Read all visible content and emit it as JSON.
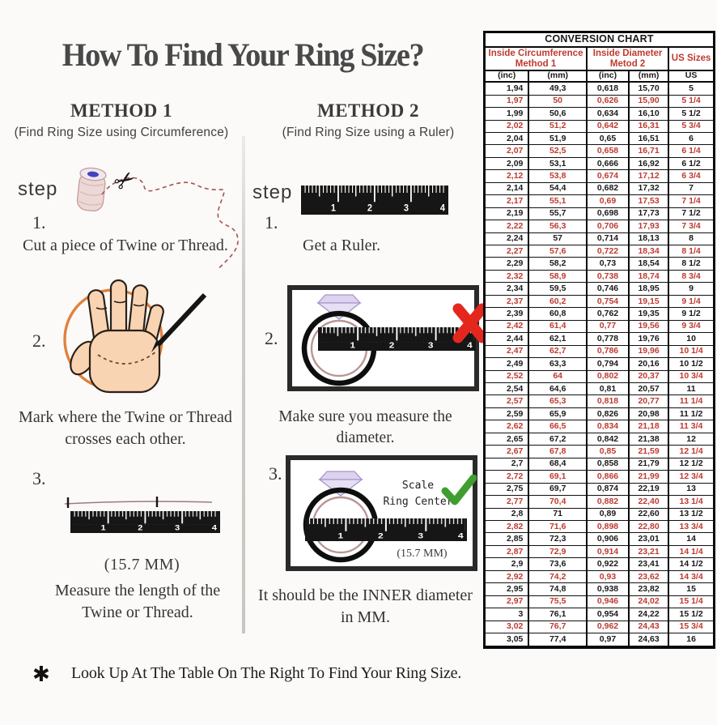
{
  "page": {
    "title": "How To Find Your Ring Size?",
    "footer_symbol": "✱",
    "footer_note": "Look Up At The Table On The Right To Find Your Ring Size."
  },
  "icons": {
    "scissors": "✂"
  },
  "ruler": {
    "numbers": [
      "1",
      "2",
      "3",
      "4"
    ]
  },
  "method1": {
    "heading": "METHOD 1",
    "subheading": "(Find Ring Size using Circumference)",
    "step_label": "step",
    "steps": [
      {
        "number": "1.",
        "caption": "Cut a piece of  Twine or Thread."
      },
      {
        "number": "2.",
        "caption_line1": "Mark where the Twine or Thread",
        "caption_line2": "crosses each other."
      },
      {
        "number": "3.",
        "measurement": "(15.7 MM)",
        "caption_line1": "Measure the length of the",
        "caption_line2": "Twine or Thread."
      }
    ]
  },
  "method2": {
    "heading": "METHOD 2",
    "subheading": "(Find Ring Size using a Ruler)",
    "step_label": "step",
    "steps": [
      {
        "number": "1.",
        "caption": "Get a Ruler."
      },
      {
        "number": "2.",
        "caption": "Make sure you measure the diameter."
      },
      {
        "number": "3.",
        "scale_line1": "Scale",
        "scale_line2": "Ring Center",
        "measurement": "(15.7 MM)",
        "caption_line1": "It should be the INNER diameter",
        "caption_line2": "in MM."
      }
    ]
  },
  "conversion_chart": {
    "title": "CONVERSION CHART",
    "group1_line1": "Inside Circumference",
    "group1_line2": "Method 1",
    "group2_line1": "Inside Diameter",
    "group2_line2": "Metod 2",
    "group3": "US Sizes",
    "units": [
      "(inc)",
      "(mm)",
      "(inc)",
      "(mm)",
      "US"
    ],
    "rows": [
      [
        "1,94",
        "49,3",
        "0,618",
        "15,70",
        "5"
      ],
      [
        "1,97",
        "50",
        "0,626",
        "15,90",
        "5 1/4"
      ],
      [
        "1,99",
        "50,6",
        "0,634",
        "16,10",
        "5 1/2"
      ],
      [
        "2,02",
        "51,2",
        "0,642",
        "16,31",
        "5 3/4"
      ],
      [
        "2,04",
        "51,9",
        "0,65",
        "16,51",
        "6"
      ],
      [
        "2,07",
        "52,5",
        "0,658",
        "16,71",
        "6 1/4"
      ],
      [
        "2,09",
        "53,1",
        "0,666",
        "16,92",
        "6 1/2"
      ],
      [
        "2,12",
        "53,8",
        "0,674",
        "17,12",
        "6 3/4"
      ],
      [
        "2,14",
        "54,4",
        "0,682",
        "17,32",
        "7"
      ],
      [
        "2,17",
        "55,1",
        "0,69",
        "17,53",
        "7 1/4"
      ],
      [
        "2,19",
        "55,7",
        "0,698",
        "17,73",
        "7 1/2"
      ],
      [
        "2,22",
        "56,3",
        "0,706",
        "17,93",
        "7 3/4"
      ],
      [
        "2,24",
        "57",
        "0,714",
        "18,13",
        "8"
      ],
      [
        "2,27",
        "57,6",
        "0,722",
        "18,34",
        "8 1/4"
      ],
      [
        "2,29",
        "58,2",
        "0,73",
        "18,54",
        "8 1/2"
      ],
      [
        "2,32",
        "58,9",
        "0,738",
        "18,74",
        "8 3/4"
      ],
      [
        "2,34",
        "59,5",
        "0,746",
        "18,95",
        "9"
      ],
      [
        "2,37",
        "60,2",
        "0,754",
        "19,15",
        "9 1/4"
      ],
      [
        "2,39",
        "60,8",
        "0,762",
        "19,35",
        "9 1/2"
      ],
      [
        "2,42",
        "61,4",
        "0,77",
        "19,56",
        "9 3/4"
      ],
      [
        "2,44",
        "62,1",
        "0,778",
        "19,76",
        "10"
      ],
      [
        "2,47",
        "62,7",
        "0,786",
        "19,96",
        "10 1/4"
      ],
      [
        "2,49",
        "63,3",
        "0,794",
        "20,16",
        "10 1/2"
      ],
      [
        "2,52",
        "64",
        "0,802",
        "20,37",
        "10 3/4"
      ],
      [
        "2,54",
        "64,6",
        "0,81",
        "20,57",
        "11"
      ],
      [
        "2,57",
        "65,3",
        "0,818",
        "20,77",
        "11 1/4"
      ],
      [
        "2,59",
        "65,9",
        "0,826",
        "20,98",
        "11 1/2"
      ],
      [
        "2,62",
        "66,5",
        "0,834",
        "21,18",
        "11 3/4"
      ],
      [
        "2,65",
        "67,2",
        "0,842",
        "21,38",
        "12"
      ],
      [
        "2,67",
        "67,8",
        "0,85",
        "21,59",
        "12 1/4"
      ],
      [
        "2,7",
        "68,4",
        "0,858",
        "21,79",
        "12 1/2"
      ],
      [
        "2,72",
        "69,1",
        "0,866",
        "21,99",
        "12 3/4"
      ],
      [
        "2,75",
        "69,7",
        "0,874",
        "22,19",
        "13"
      ],
      [
        "2,77",
        "70,4",
        "0,882",
        "22,40",
        "13 1/4"
      ],
      [
        "2,8",
        "71",
        "0,89",
        "22,60",
        "13 1/2"
      ],
      [
        "2,82",
        "71,6",
        "0,898",
        "22,80",
        "13 3/4"
      ],
      [
        "2,85",
        "72,3",
        "0,906",
        "23,01",
        "14"
      ],
      [
        "2,87",
        "72,9",
        "0,914",
        "23,21",
        "14 1/4"
      ],
      [
        "2,9",
        "73,6",
        "0,922",
        "23,41",
        "14 1/2"
      ],
      [
        "2,92",
        "74,2",
        "0,93",
        "23,62",
        "14 3/4"
      ],
      [
        "2,95",
        "74,8",
        "0,938",
        "23,82",
        "15"
      ],
      [
        "2,97",
        "75,5",
        "0,946",
        "24,02",
        "15 1/4"
      ],
      [
        "3",
        "76,1",
        "0,954",
        "24,22",
        "15 1/2"
      ],
      [
        "3,02",
        "76,7",
        "0,962",
        "24,43",
        "15 3/4"
      ],
      [
        "3,05",
        "77,4",
        "0,97",
        "24,63",
        "16"
      ]
    ]
  },
  "colors": {
    "accent_red": "#bf3a30",
    "x_red": "#e5261d",
    "check_green": "#3f9e2f",
    "circle_orange": "#e0813c"
  }
}
